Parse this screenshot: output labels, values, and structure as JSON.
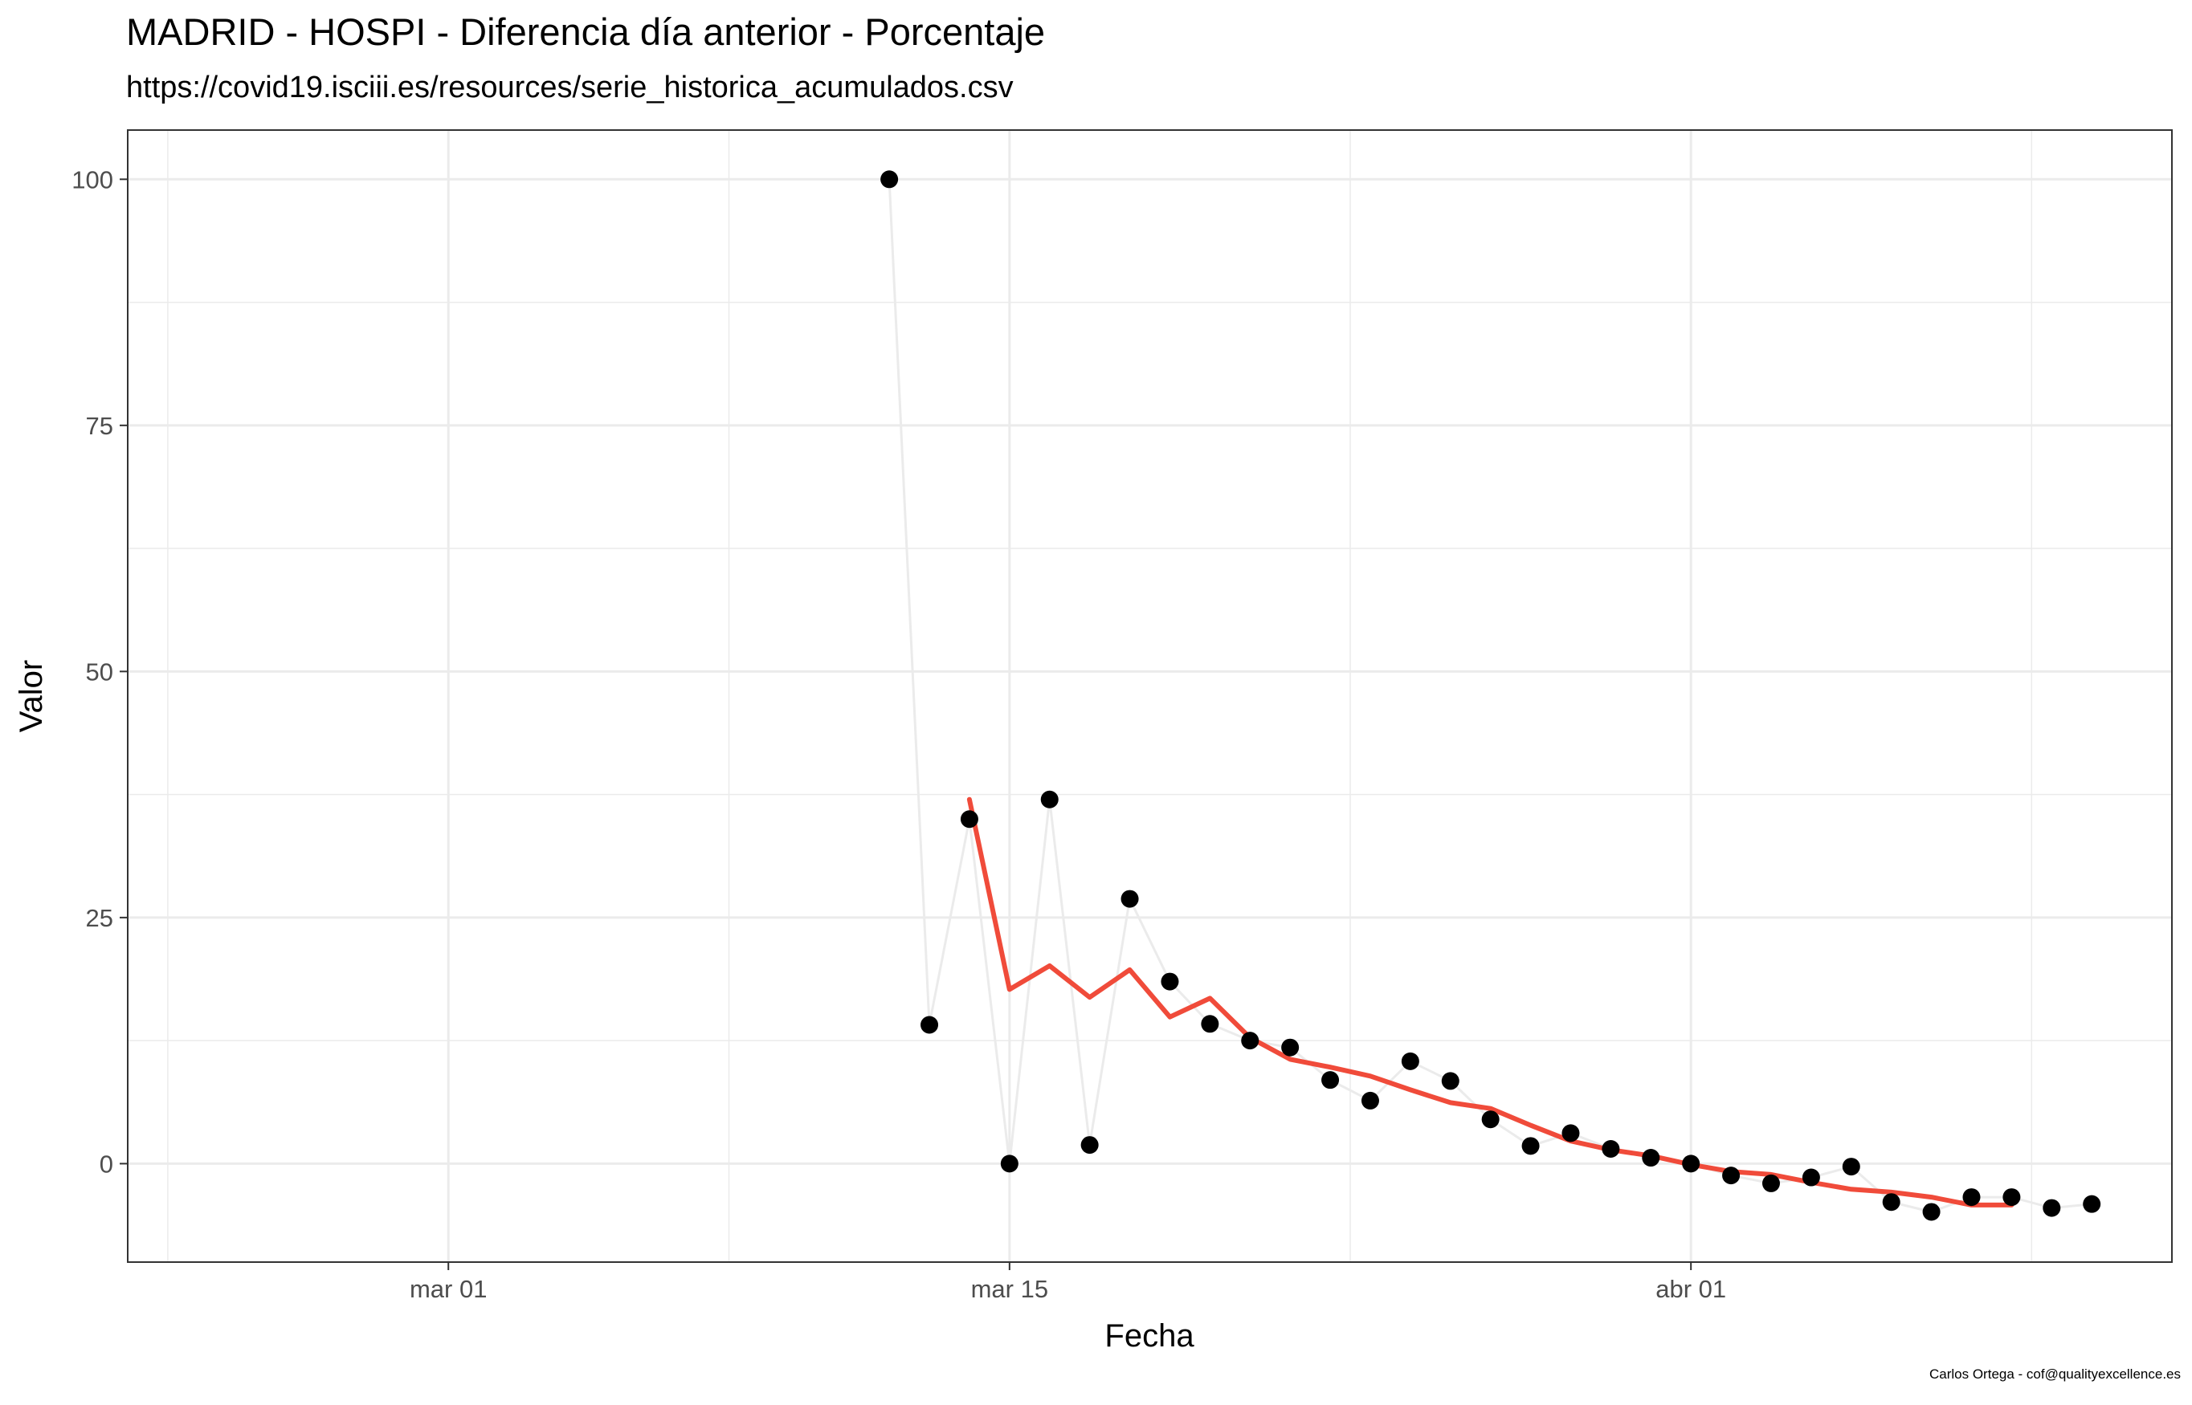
{
  "title": "MADRID - HOSPI - Diferencia día anterior - Porcentaje",
  "subtitle": "https://covid19.isciii.es/resources/serie_historica_acumulados.csv",
  "caption": "Carlos Ortega - cof@qualityexcellence.es",
  "chart_data": {
    "type": "scatter",
    "xlabel": "Fecha",
    "ylabel": "Valor",
    "x_ticks": [
      {
        "date": "2020-03-01",
        "label": "mar 01"
      },
      {
        "date": "2020-03-15",
        "label": "mar 15"
      },
      {
        "date": "2020-04-01",
        "label": "abr 01"
      }
    ],
    "y_ticks": [
      0,
      25,
      50,
      75,
      100
    ],
    "xlim": [
      "2020-02-22",
      "2020-04-13"
    ],
    "ylim": [
      -10,
      105
    ],
    "grid": true,
    "colors": {
      "points": "#000000",
      "connector": "#ebebeb",
      "trend": "#f04b3a"
    },
    "series": [
      {
        "kind": "points",
        "x": [
          "2020-03-12",
          "2020-03-13",
          "2020-03-14",
          "2020-03-15",
          "2020-03-16",
          "2020-03-17",
          "2020-03-18",
          "2020-03-19",
          "2020-03-20",
          "2020-03-21",
          "2020-03-22",
          "2020-03-23",
          "2020-03-24",
          "2020-03-25",
          "2020-03-26",
          "2020-03-27",
          "2020-03-28",
          "2020-03-29",
          "2020-03-30",
          "2020-03-31",
          "2020-04-01",
          "2020-04-02",
          "2020-04-03",
          "2020-04-04",
          "2020-04-05",
          "2020-04-06",
          "2020-04-07",
          "2020-04-08",
          "2020-04-09",
          "2020-04-10",
          "2020-04-11"
        ],
        "y": [
          100,
          14.1,
          35,
          0,
          37,
          1.9,
          26.9,
          18.5,
          14.2,
          12.5,
          11.8,
          8.5,
          6.4,
          10.4,
          8.4,
          4.5,
          1.8,
          3.1,
          1.5,
          0.6,
          0.0,
          -1.2,
          -2.0,
          -1.4,
          -0.3,
          -3.9,
          -4.9,
          -3.4,
          -3.4,
          -4.5,
          -4.1
        ]
      },
      {
        "kind": "trend",
        "x": [
          "2020-03-14",
          "2020-03-15",
          "2020-03-16",
          "2020-03-17",
          "2020-03-18",
          "2020-03-19",
          "2020-03-20",
          "2020-03-21",
          "2020-03-22",
          "2020-03-23",
          "2020-03-24",
          "2020-03-25",
          "2020-03-26",
          "2020-03-27",
          "2020-03-28",
          "2020-03-29",
          "2020-03-30",
          "2020-03-31",
          "2020-04-01",
          "2020-04-02",
          "2020-04-03",
          "2020-04-04",
          "2020-04-05",
          "2020-04-06",
          "2020-04-07",
          "2020-04-08",
          "2020-04-09"
        ],
        "y": [
          37.0,
          17.7,
          20.1,
          16.9,
          19.7,
          14.9,
          16.8,
          12.8,
          10.6,
          9.8,
          8.9,
          7.5,
          6.2,
          5.6,
          3.9,
          2.3,
          1.4,
          0.8,
          -0.1,
          -0.8,
          -1.1,
          -1.9,
          -2.6,
          -2.9,
          -3.4,
          -4.2,
          -4.2
        ]
      }
    ]
  }
}
